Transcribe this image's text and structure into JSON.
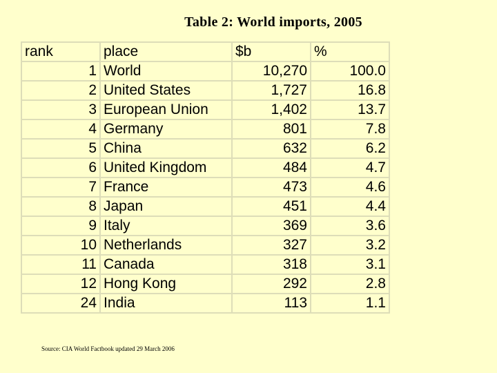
{
  "title": "Table 2: World imports, 2005",
  "table": {
    "headers": [
      "rank",
      "place",
      "$b",
      "%"
    ],
    "rows": [
      {
        "rank": "1",
        "place": "World",
        "value": "10,270",
        "pct": "100.0"
      },
      {
        "rank": "2",
        "place": "United States",
        "value": "1,727",
        "pct": "16.8"
      },
      {
        "rank": "3",
        "place": "European Union",
        "value": "1,402",
        "pct": "13.7"
      },
      {
        "rank": "4",
        "place": "Germany",
        "value": "801",
        "pct": "7.8"
      },
      {
        "rank": "5",
        "place": "China",
        "value": "632",
        "pct": "6.2"
      },
      {
        "rank": "6",
        "place": "United Kingdom",
        "value": "484",
        "pct": "4.7"
      },
      {
        "rank": "7",
        "place": "France",
        "value": "473",
        "pct": "4.6"
      },
      {
        "rank": "8",
        "place": "Japan",
        "value": "451",
        "pct": "4.4"
      },
      {
        "rank": "9",
        "place": "Italy",
        "value": "369",
        "pct": "3.6"
      },
      {
        "rank": "10",
        "place": "Netherlands",
        "value": "327",
        "pct": "3.2"
      },
      {
        "rank": "11",
        "place": "Canada",
        "value": "318",
        "pct": "3.1"
      },
      {
        "rank": "12",
        "place": "Hong Kong",
        "value": "292",
        "pct": "2.8"
      },
      {
        "rank": "24",
        "place": "India",
        "value": "113",
        "pct": "1.1"
      }
    ]
  },
  "source": "Source: CIA World Factbook updated 29 March 2006",
  "colors": {
    "background": "#ffffcc",
    "grid": "#ddddb8"
  }
}
